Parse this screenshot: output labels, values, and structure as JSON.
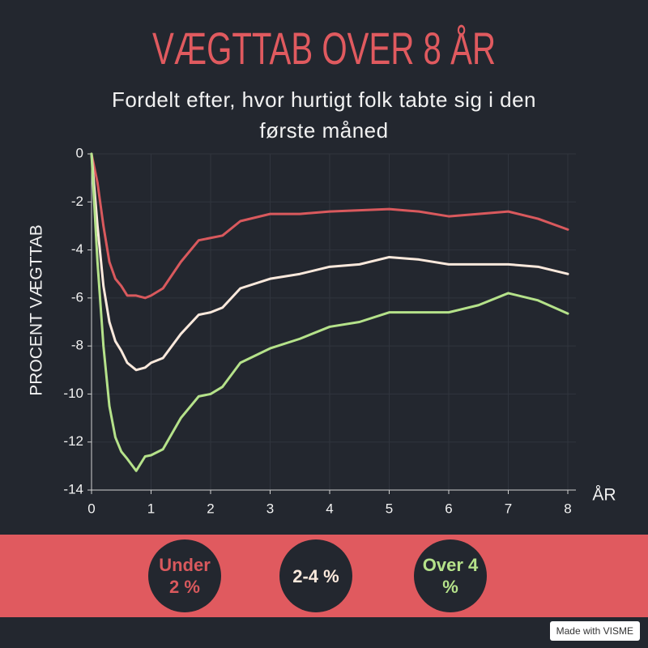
{
  "chart_data": {
    "type": "line",
    "title": "VÆGTTAB OVER 8 ÅR",
    "subtitle": "Fordelt efter, hvor hurtigt folk tabte sig i den første måned",
    "y_label": "PROCENT VÆGTTAB",
    "x_label": "ÅR",
    "xlim": [
      0,
      8
    ],
    "ylim": [
      -14,
      0
    ],
    "xticks": [
      0,
      1,
      2,
      3,
      4,
      5,
      6,
      7,
      8
    ],
    "yticks": [
      0,
      -2,
      -4,
      -6,
      -8,
      -10,
      -12,
      -14
    ],
    "grid": true,
    "x": [
      0,
      0.1,
      0.2,
      0.3,
      0.4,
      0.5,
      0.6,
      0.75,
      0.9,
      1.0,
      1.2,
      1.5,
      1.8,
      2.0,
      2.2,
      2.5,
      3.0,
      3.5,
      4.0,
      4.5,
      5.0,
      5.5,
      6.0,
      6.5,
      7.0,
      7.5,
      8.0
    ],
    "series": [
      {
        "name": "Under 2 %",
        "color": "#d9595d",
        "values": [
          0,
          -1.2,
          -3,
          -4.5,
          -5.2,
          -5.5,
          -5.9,
          -5.9,
          -6.0,
          -5.9,
          -5.6,
          -4.5,
          -3.6,
          -3.5,
          -3.4,
          -2.8,
          -2.5,
          -2.5,
          -2.4,
          -2.35,
          -2.3,
          -2.4,
          -2.6,
          -2.5,
          -2.4,
          -2.7,
          -3.15
        ]
      },
      {
        "name": "2-4 %",
        "color": "#fbe9dc",
        "values": [
          0,
          -3,
          -5.5,
          -7,
          -7.8,
          -8.2,
          -8.7,
          -9.0,
          -8.9,
          -8.7,
          -8.5,
          -7.5,
          -6.7,
          -6.6,
          -6.4,
          -5.6,
          -5.2,
          -5.0,
          -4.7,
          -4.6,
          -4.3,
          -4.4,
          -4.6,
          -4.6,
          -4.6,
          -4.7,
          -5.0
        ]
      },
      {
        "name": "Over 4 %",
        "color": "#b5e28a",
        "values": [
          0,
          -4.5,
          -8,
          -10.5,
          -11.8,
          -12.4,
          -12.7,
          -13.2,
          -12.6,
          -12.55,
          -12.3,
          -11,
          -10.1,
          -10.0,
          -9.7,
          -8.7,
          -8.1,
          -7.7,
          -7.2,
          -7.0,
          -6.6,
          -6.6,
          -6.6,
          -6.3,
          -5.8,
          -6.1,
          -6.65
        ]
      }
    ]
  },
  "footer": {
    "badge": "Made with VISME"
  }
}
